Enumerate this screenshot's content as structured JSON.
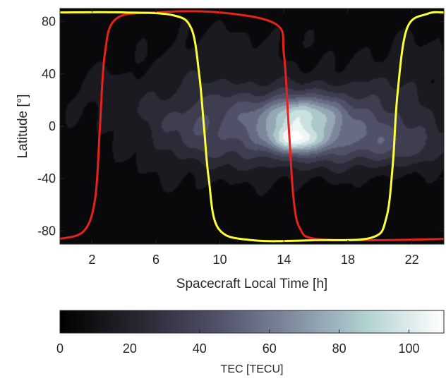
{
  "chart_data": {
    "type": "heatmap",
    "xlabel": "Spacecraft Local Time [h]",
    "ylabel": "Latitude [°]",
    "xlim": [
      0,
      24
    ],
    "ylim": [
      -90,
      90
    ],
    "xticks": [
      2,
      6,
      10,
      14,
      18,
      22
    ],
    "yticks": [
      80,
      40,
      0,
      -40,
      -80
    ],
    "colorbar": {
      "label": "TEC [TECU]",
      "range": [
        0,
        110
      ],
      "ticks": [
        0,
        20,
        40,
        60,
        80,
        100
      ],
      "colormap": [
        "#000000",
        "#26262f",
        "#4e4e66",
        "#7e8a9e",
        "#b3d2d2",
        "#ffffff"
      ]
    },
    "tec_blobs": [
      {
        "lt": 14.8,
        "lat": -10,
        "slt": 1.3,
        "slat": 7,
        "amp": 58
      },
      {
        "lt": 15.0,
        "lat": 9,
        "slt": 1.6,
        "slat": 9,
        "amp": 50
      },
      {
        "lt": 13.5,
        "lat": 0,
        "slt": 4.5,
        "slat": 22,
        "amp": 40
      },
      {
        "lt": 20.5,
        "lat": -14,
        "slt": 3.5,
        "slat": 13,
        "amp": 26
      },
      {
        "lt": 19.0,
        "lat": 12,
        "slt": 3.0,
        "slat": 16,
        "amp": 14
      },
      {
        "lt": 8.0,
        "lat": 5,
        "slt": 2.5,
        "slat": 30,
        "amp": 13
      },
      {
        "lt": 2.5,
        "lat": 25,
        "slt": 2.0,
        "slat": 15,
        "amp": 9
      },
      {
        "lt": 11.0,
        "lat": 60,
        "slt": 3.0,
        "slat": 15,
        "amp": 8
      },
      {
        "lt": 22.0,
        "lat": 45,
        "slt": 2.5,
        "slat": 20,
        "amp": 10
      }
    ],
    "series": [
      {
        "color": "#e8211b",
        "lt": [
          0.0,
          1.5,
          2.2,
          2.5,
          2.8,
          3.5,
          6.0,
          10.0,
          13.5,
          14.0,
          14.3,
          14.6,
          15.0,
          16.0,
          20.0,
          24.0
        ],
        "lat": [
          -86,
          -80,
          -55,
          0,
          55,
          82,
          87,
          87,
          78,
          55,
          0,
          -55,
          -78,
          -86,
          -87,
          -86
        ]
      },
      {
        "color": "#ffff33",
        "lt": [
          0.0,
          4.0,
          7.0,
          8.2,
          8.7,
          9.0,
          9.3,
          9.9,
          12.0,
          16.0,
          19.5,
          20.4,
          20.8,
          21.1,
          21.7,
          23.0,
          24.0
        ],
        "lat": [
          87,
          87,
          85,
          75,
          40,
          0,
          -40,
          -78,
          -87,
          -87,
          -85,
          -70,
          -30,
          25,
          75,
          86,
          87
        ]
      }
    ]
  }
}
